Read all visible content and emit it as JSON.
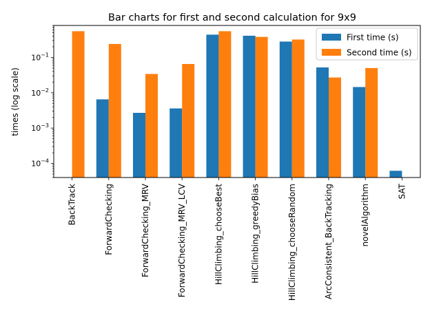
{
  "chart_data": {
    "type": "bar",
    "title": "Bar charts for first and second calculation for 9x9",
    "xlabel": "",
    "ylabel": "times (log scale)",
    "yscale": "log",
    "ylim": [
      4e-05,
      0.8
    ],
    "y_ticks": [
      {
        "value": 0.0001,
        "base": "10",
        "exp": "−4"
      },
      {
        "value": 0.001,
        "base": "10",
        "exp": "−3"
      },
      {
        "value": 0.01,
        "base": "10",
        "exp": "−2"
      },
      {
        "value": 0.1,
        "base": "10",
        "exp": "−1"
      }
    ],
    "categories": [
      "BackTrack",
      "ForwardChecking",
      "ForwardChecking_MRV",
      "ForwardChecking_MRV_LCV",
      "HillClimbing_chooseBest",
      "HillClimbing_greedyBias",
      "HillClimbing_chooseRandom",
      "ArcConsistent_BackTracking",
      "novelAlgorithm",
      "SAT"
    ],
    "series": [
      {
        "name": "First time (s)",
        "color": "#1f77b4",
        "values": [
          null,
          0.0065,
          0.0027,
          0.0036,
          0.44,
          0.41,
          0.28,
          0.052,
          0.0145,
          6.2e-05
        ]
      },
      {
        "name": "Second time (s)",
        "color": "#ff7f0e",
        "values": [
          0.55,
          0.24,
          0.034,
          0.065,
          0.55,
          0.38,
          0.32,
          0.027,
          0.05,
          null
        ]
      }
    ],
    "legend": "top-right",
    "grid": false
  }
}
